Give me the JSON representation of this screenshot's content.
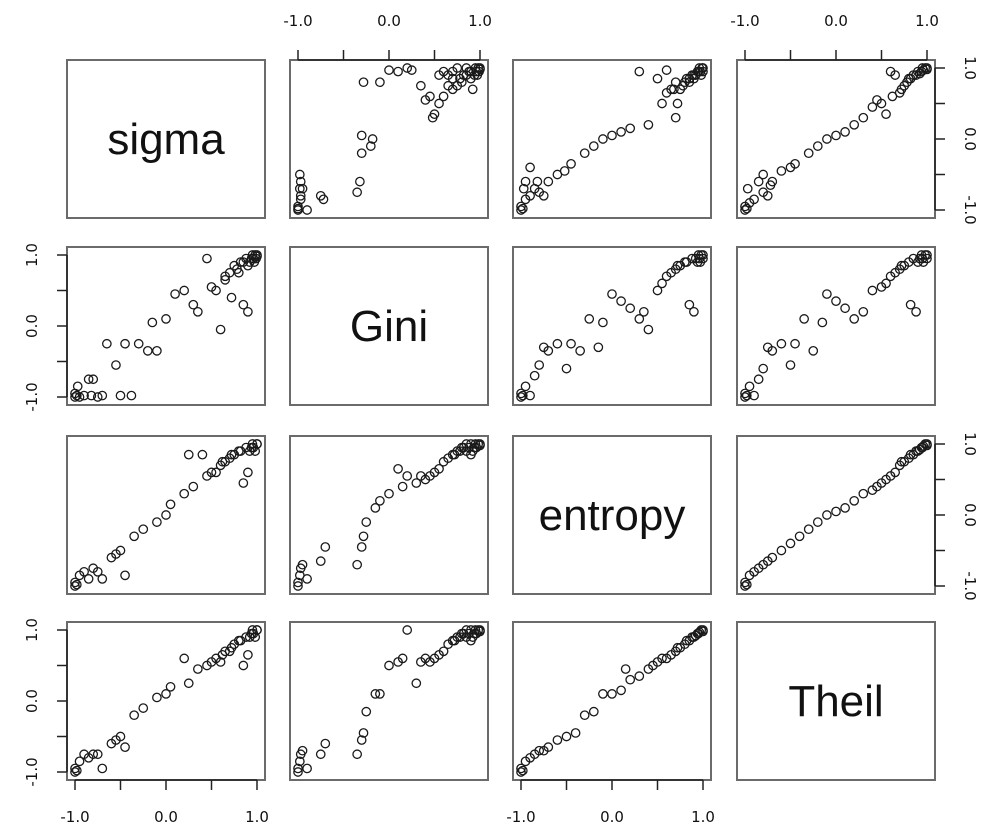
{
  "chart_data": {
    "type": "scatter-matrix",
    "variables": [
      "sigma",
      "Gini",
      "entropy",
      "Theil"
    ],
    "axis_range": [
      -1.0,
      1.0
    ],
    "tick_values": [
      -1.0,
      -0.5,
      0.0,
      0.5,
      1.0
    ],
    "tick_labels": [
      "-1.0",
      "0.0",
      "1.0"
    ],
    "tick_label_values": [
      -1.0,
      0.0,
      1.0
    ],
    "marker": "open-circle",
    "pairs": [
      {
        "row": 0,
        "col": 1,
        "x": [
          -1,
          -1,
          -1,
          -0.98,
          -0.97,
          -0.98,
          -0.97,
          -0.95,
          -0.97,
          -0.9,
          -0.75,
          -0.72,
          -0.3,
          -0.32,
          -0.35,
          -0.3,
          -0.2,
          -0.18,
          -0.28,
          -0.1,
          0,
          0.1,
          0.2,
          0.25,
          0.35,
          0.4,
          0.45,
          0.48,
          0.5,
          0.55,
          0.55,
          0.6,
          0.6,
          0.65,
          0.65,
          0.7,
          0.7,
          0.7,
          0.75,
          0.75,
          0.78,
          0.8,
          0.82,
          0.85,
          0.85,
          0.88,
          0.9,
          0.9,
          0.92,
          0.94,
          0.95,
          0.96,
          0.97,
          0.98,
          0.99,
          1,
          1
        ],
        "y": [
          -1,
          -0.95,
          -0.98,
          -0.7,
          -0.8,
          -0.5,
          -0.6,
          -0.7,
          -0.85,
          -1,
          -0.8,
          -0.85,
          -0.2,
          -0.6,
          -0.75,
          0.05,
          -0.1,
          0,
          0.8,
          0.8,
          0.97,
          0.95,
          1,
          0.97,
          0.75,
          0.55,
          0.6,
          0.3,
          0.35,
          0.5,
          0.9,
          0.6,
          0.95,
          0.75,
          0.9,
          0.7,
          0.85,
          0.95,
          0.75,
          1,
          0.85,
          0.8,
          0.9,
          0.9,
          1,
          0.95,
          0.85,
          0.95,
          0.7,
          0.9,
          1,
          0.95,
          0.9,
          1,
          0.95,
          1,
          0.98
        ]
      },
      {
        "row": 0,
        "col": 2,
        "x": [
          -1,
          -1,
          -0.98,
          -0.95,
          -0.97,
          -0.95,
          -0.9,
          -0.9,
          -0.85,
          -0.82,
          -0.8,
          -0.75,
          -0.7,
          -0.6,
          -0.52,
          -0.45,
          -0.3,
          -0.2,
          -0.1,
          0,
          0.1,
          0.2,
          0.3,
          0.4,
          0.5,
          0.55,
          0.6,
          0.6,
          0.65,
          0.68,
          0.7,
          0.7,
          0.72,
          0.75,
          0.78,
          0.8,
          0.82,
          0.85,
          0.85,
          0.88,
          0.9,
          0.9,
          0.92,
          0.94,
          0.95,
          0.96,
          0.97,
          0.98,
          0.99,
          1,
          1
        ],
        "y": [
          -1,
          -0.95,
          -0.98,
          -0.85,
          -0.7,
          -0.6,
          -0.8,
          -0.4,
          -0.7,
          -0.6,
          -0.75,
          -0.8,
          -0.6,
          -0.5,
          -0.45,
          -0.35,
          -0.2,
          -0.1,
          0,
          0.05,
          0.1,
          0.15,
          0.95,
          0.2,
          0.85,
          0.5,
          0.65,
          0.97,
          0.7,
          0.7,
          0.8,
          0.3,
          0.5,
          0.7,
          0.75,
          0.8,
          0.85,
          0.85,
          0.8,
          0.9,
          0.9,
          0.85,
          0.9,
          0.95,
          0.95,
          1,
          0.95,
          0.9,
          1,
          0.95,
          1
        ]
      },
      {
        "row": 0,
        "col": 3,
        "x": [
          -1,
          -1,
          -0.98,
          -0.97,
          -0.95,
          -0.9,
          -0.85,
          -0.8,
          -0.8,
          -0.75,
          -0.72,
          -0.7,
          -0.6,
          -0.5,
          -0.45,
          -0.3,
          -0.2,
          -0.1,
          0,
          0.1,
          0.2,
          0.3,
          0.4,
          0.45,
          0.5,
          0.55,
          0.6,
          0.62,
          0.65,
          0.7,
          0.72,
          0.75,
          0.78,
          0.8,
          0.82,
          0.85,
          0.88,
          0.9,
          0.92,
          0.94,
          0.95,
          0.96,
          0.98,
          1,
          1
        ],
        "y": [
          -1,
          -0.95,
          -0.98,
          -0.7,
          -0.9,
          -0.85,
          -0.6,
          -0.75,
          -0.5,
          -0.8,
          -0.65,
          -0.6,
          -0.45,
          -0.4,
          -0.35,
          -0.2,
          -0.1,
          0,
          0.05,
          0.1,
          0.2,
          0.3,
          0.45,
          0.55,
          0.5,
          0.35,
          0.95,
          0.6,
          0.9,
          0.65,
          0.7,
          0.75,
          0.8,
          0.85,
          0.85,
          0.9,
          0.9,
          0.95,
          0.92,
          0.95,
          1,
          0.97,
          1,
          0.98,
          1
        ]
      },
      {
        "row": 1,
        "col": 0,
        "x": [
          -1,
          -1,
          -0.98,
          -0.97,
          -0.95,
          -0.9,
          -0.85,
          -0.82,
          -0.8,
          -0.75,
          -0.7,
          -0.65,
          -0.55,
          -0.5,
          -0.45,
          -0.38,
          -0.3,
          -0.2,
          -0.15,
          -0.1,
          0,
          0.1,
          0.2,
          0.3,
          0.35,
          0.45,
          0.5,
          0.55,
          0.6,
          0.65,
          0.65,
          0.7,
          0.72,
          0.75,
          0.78,
          0.8,
          0.82,
          0.85,
          0.85,
          0.88,
          0.9,
          0.9,
          0.92,
          0.94,
          0.95,
          0.96,
          0.97,
          0.98,
          0.99,
          1,
          1
        ],
        "y": [
          -1,
          -0.95,
          -0.98,
          -0.85,
          -1,
          -0.98,
          -0.75,
          -0.98,
          -0.75,
          -1,
          -0.98,
          -0.25,
          -0.55,
          -0.98,
          -0.25,
          -0.98,
          -0.25,
          -0.35,
          0.05,
          -0.35,
          0.1,
          0.45,
          0.5,
          0.3,
          0.2,
          0.95,
          0.55,
          0.5,
          -0.05,
          0.65,
          0.7,
          0.75,
          0.4,
          0.85,
          0.8,
          0.75,
          0.9,
          0.9,
          0.3,
          0.95,
          0.2,
          0.85,
          0.9,
          0.95,
          1,
          0.95,
          0.9,
          1,
          0.95,
          1,
          0.98
        ]
      },
      {
        "row": 1,
        "col": 2,
        "x": [
          -1,
          -1,
          -0.98,
          -0.95,
          -0.9,
          -0.85,
          -0.8,
          -0.75,
          -0.7,
          -0.6,
          -0.5,
          -0.45,
          -0.35,
          -0.25,
          -0.15,
          -0.1,
          0,
          0.1,
          0.2,
          0.3,
          0.35,
          0.4,
          0.5,
          0.55,
          0.6,
          0.65,
          0.7,
          0.72,
          0.75,
          0.8,
          0.82,
          0.85,
          0.88,
          0.9,
          0.92,
          0.94,
          0.95,
          0.96,
          0.97,
          0.98,
          1,
          1
        ],
        "y": [
          -1,
          -0.95,
          -0.98,
          -0.85,
          -0.98,
          -0.7,
          -0.55,
          -0.3,
          -0.35,
          -0.25,
          -0.6,
          -0.25,
          -0.35,
          0.1,
          -0.3,
          0.05,
          0.45,
          0.35,
          0.25,
          0.1,
          0.2,
          -0.05,
          0.5,
          0.6,
          0.7,
          0.75,
          0.8,
          0.85,
          0.85,
          0.9,
          0.9,
          0.3,
          0.95,
          0.2,
          0.95,
          0.9,
          1,
          0.95,
          0.9,
          1,
          0.95,
          1
        ]
      },
      {
        "row": 1,
        "col": 3,
        "x": [
          -1,
          -1,
          -0.98,
          -0.95,
          -0.9,
          -0.85,
          -0.8,
          -0.75,
          -0.7,
          -0.6,
          -0.5,
          -0.45,
          -0.35,
          -0.25,
          -0.15,
          -0.1,
          0,
          0.1,
          0.2,
          0.3,
          0.4,
          0.5,
          0.55,
          0.6,
          0.65,
          0.7,
          0.72,
          0.75,
          0.8,
          0.82,
          0.85,
          0.88,
          0.9,
          0.92,
          0.94,
          0.95,
          0.96,
          0.98,
          1,
          1
        ],
        "y": [
          -1,
          -0.95,
          -0.98,
          -0.85,
          -0.98,
          -0.75,
          -0.6,
          -0.3,
          -0.35,
          -0.25,
          -0.55,
          -0.25,
          0.1,
          -0.35,
          0.05,
          0.45,
          0.35,
          0.25,
          0.1,
          0.2,
          0.5,
          0.55,
          0.6,
          0.7,
          0.75,
          0.8,
          0.85,
          0.85,
          0.9,
          0.3,
          0.95,
          0.2,
          0.9,
          0.95,
          1,
          0.95,
          0.9,
          1,
          0.95,
          1
        ]
      },
      {
        "row": 2,
        "col": 0,
        "x": [
          -1,
          -1,
          -0.98,
          -0.95,
          -0.9,
          -0.85,
          -0.8,
          -0.75,
          -0.7,
          -0.6,
          -0.55,
          -0.5,
          -0.45,
          -0.35,
          -0.25,
          -0.1,
          0,
          0.05,
          0.2,
          0.25,
          0.3,
          0.4,
          0.45,
          0.5,
          0.55,
          0.6,
          0.62,
          0.65,
          0.7,
          0.72,
          0.75,
          0.8,
          0.82,
          0.85,
          0.88,
          0.9,
          0.92,
          0.94,
          0.95,
          0.96,
          0.98,
          1,
          1
        ],
        "y": [
          -1,
          -0.95,
          -0.98,
          -0.85,
          -0.8,
          -0.9,
          -0.75,
          -0.8,
          -0.9,
          -0.6,
          -0.55,
          -0.5,
          -0.85,
          -0.3,
          -0.2,
          -0.1,
          0,
          0.15,
          0.3,
          0.85,
          0.4,
          0.85,
          0.55,
          0.6,
          0.6,
          0.7,
          0.75,
          0.75,
          0.8,
          0.85,
          0.85,
          0.9,
          0.9,
          0.45,
          0.95,
          0.6,
          0.9,
          0.95,
          1,
          0.95,
          0.9,
          1,
          1
        ]
      },
      {
        "row": 2,
        "col": 1,
        "x": [
          -1,
          -1,
          -0.98,
          -0.97,
          -0.95,
          -0.9,
          -0.75,
          -0.7,
          -0.35,
          -0.3,
          -0.28,
          -0.25,
          -0.15,
          -0.1,
          0,
          0.1,
          0.15,
          0.2,
          0.3,
          0.35,
          0.4,
          0.45,
          0.5,
          0.55,
          0.6,
          0.65,
          0.7,
          0.72,
          0.75,
          0.78,
          0.8,
          0.82,
          0.85,
          0.85,
          0.88,
          0.9,
          0.9,
          0.92,
          0.94,
          0.95,
          0.96,
          0.98,
          1,
          1
        ],
        "y": [
          -1,
          -0.95,
          -0.85,
          -0.75,
          -0.7,
          -0.9,
          -0.65,
          -0.45,
          -0.7,
          -0.45,
          -0.3,
          -0.1,
          0.1,
          0.2,
          0.3,
          0.65,
          0.4,
          0.55,
          0.45,
          0.55,
          0.5,
          0.55,
          0.6,
          0.65,
          0.75,
          0.8,
          0.85,
          0.85,
          0.9,
          0.9,
          0.95,
          0.95,
          0.9,
          1,
          0.95,
          1,
          0.85,
          0.9,
          0.95,
          1,
          0.95,
          1,
          0.98,
          1
        ]
      },
      {
        "row": 2,
        "col": 3,
        "x": [
          -1,
          -1,
          -0.98,
          -0.95,
          -0.9,
          -0.85,
          -0.8,
          -0.75,
          -0.7,
          -0.6,
          -0.5,
          -0.4,
          -0.3,
          -0.2,
          -0.1,
          0,
          0.1,
          0.2,
          0.3,
          0.4,
          0.45,
          0.5,
          0.55,
          0.6,
          0.65,
          0.7,
          0.72,
          0.75,
          0.8,
          0.82,
          0.85,
          0.88,
          0.9,
          0.92,
          0.94,
          0.95,
          0.96,
          0.98,
          1,
          1
        ],
        "y": [
          -1,
          -0.95,
          -0.98,
          -0.85,
          -0.8,
          -0.75,
          -0.7,
          -0.65,
          -0.6,
          -0.5,
          -0.4,
          -0.3,
          -0.2,
          -0.1,
          0,
          0.05,
          0.1,
          0.2,
          0.3,
          0.35,
          0.4,
          0.45,
          0.5,
          0.55,
          0.6,
          0.7,
          0.75,
          0.75,
          0.8,
          0.85,
          0.85,
          0.9,
          0.9,
          0.92,
          0.95,
          0.95,
          0.97,
          1,
          0.98,
          1
        ]
      },
      {
        "row": 3,
        "col": 0,
        "x": [
          -1,
          -1,
          -0.98,
          -0.95,
          -0.9,
          -0.85,
          -0.8,
          -0.75,
          -0.7,
          -0.6,
          -0.55,
          -0.5,
          -0.45,
          -0.35,
          -0.25,
          -0.1,
          0,
          0.05,
          0.2,
          0.25,
          0.35,
          0.45,
          0.5,
          0.55,
          0.6,
          0.62,
          0.65,
          0.7,
          0.72,
          0.75,
          0.8,
          0.82,
          0.85,
          0.88,
          0.9,
          0.92,
          0.94,
          0.95,
          0.96,
          0.98,
          1,
          1
        ],
        "y": [
          -1,
          -0.95,
          -0.98,
          -0.85,
          -0.75,
          -0.8,
          -0.75,
          -0.75,
          -0.95,
          -0.6,
          -0.55,
          -0.5,
          -0.65,
          -0.2,
          -0.1,
          0.05,
          0.1,
          0.2,
          0.6,
          0.25,
          0.45,
          0.5,
          0.55,
          0.6,
          0.55,
          0.65,
          0.7,
          0.7,
          0.75,
          0.8,
          0.85,
          0.85,
          0.5,
          0.9,
          0.65,
          0.9,
          0.95,
          1,
          0.95,
          0.9,
          1,
          1
        ]
      },
      {
        "row": 3,
        "col": 1,
        "x": [
          -1,
          -1,
          -0.98,
          -0.97,
          -0.95,
          -0.9,
          -0.75,
          -0.7,
          -0.35,
          -0.3,
          -0.28,
          -0.25,
          -0.15,
          -0.1,
          0,
          0.1,
          0.15,
          0.2,
          0.3,
          0.35,
          0.4,
          0.45,
          0.5,
          0.55,
          0.6,
          0.65,
          0.7,
          0.72,
          0.75,
          0.78,
          0.8,
          0.82,
          0.85,
          0.85,
          0.88,
          0.9,
          0.9,
          0.92,
          0.94,
          0.95,
          0.96,
          0.98,
          1,
          1
        ],
        "y": [
          -1,
          -0.95,
          -0.85,
          -0.75,
          -0.7,
          -0.95,
          -0.75,
          -0.6,
          -0.75,
          -0.55,
          -0.45,
          -0.15,
          0.1,
          0.1,
          0.5,
          0.55,
          0.6,
          1,
          0.25,
          0.55,
          0.6,
          0.55,
          0.6,
          0.65,
          0.7,
          0.8,
          0.85,
          0.85,
          0.9,
          0.9,
          0.95,
          0.95,
          0.9,
          1,
          0.95,
          1,
          0.85,
          0.9,
          0.95,
          1,
          0.95,
          1,
          0.98,
          1
        ]
      },
      {
        "row": 3,
        "col": 2,
        "x": [
          -1,
          -1,
          -0.98,
          -0.95,
          -0.9,
          -0.85,
          -0.8,
          -0.75,
          -0.7,
          -0.6,
          -0.5,
          -0.4,
          -0.3,
          -0.2,
          -0.1,
          0,
          0.1,
          0.15,
          0.2,
          0.3,
          0.4,
          0.45,
          0.5,
          0.55,
          0.6,
          0.65,
          0.7,
          0.72,
          0.75,
          0.8,
          0.82,
          0.85,
          0.88,
          0.9,
          0.92,
          0.94,
          0.95,
          0.96,
          0.98,
          1,
          1
        ],
        "y": [
          -1,
          -0.95,
          -0.98,
          -0.85,
          -0.8,
          -0.75,
          -0.7,
          -0.7,
          -0.65,
          -0.55,
          -0.5,
          -0.45,
          -0.2,
          -0.15,
          0.1,
          0.1,
          0.15,
          0.45,
          0.3,
          0.35,
          0.45,
          0.5,
          0.55,
          0.6,
          0.6,
          0.65,
          0.7,
          0.75,
          0.75,
          0.8,
          0.85,
          0.85,
          0.9,
          0.9,
          0.92,
          0.95,
          0.95,
          0.97,
          1,
          0.98,
          1
        ]
      }
    ]
  }
}
